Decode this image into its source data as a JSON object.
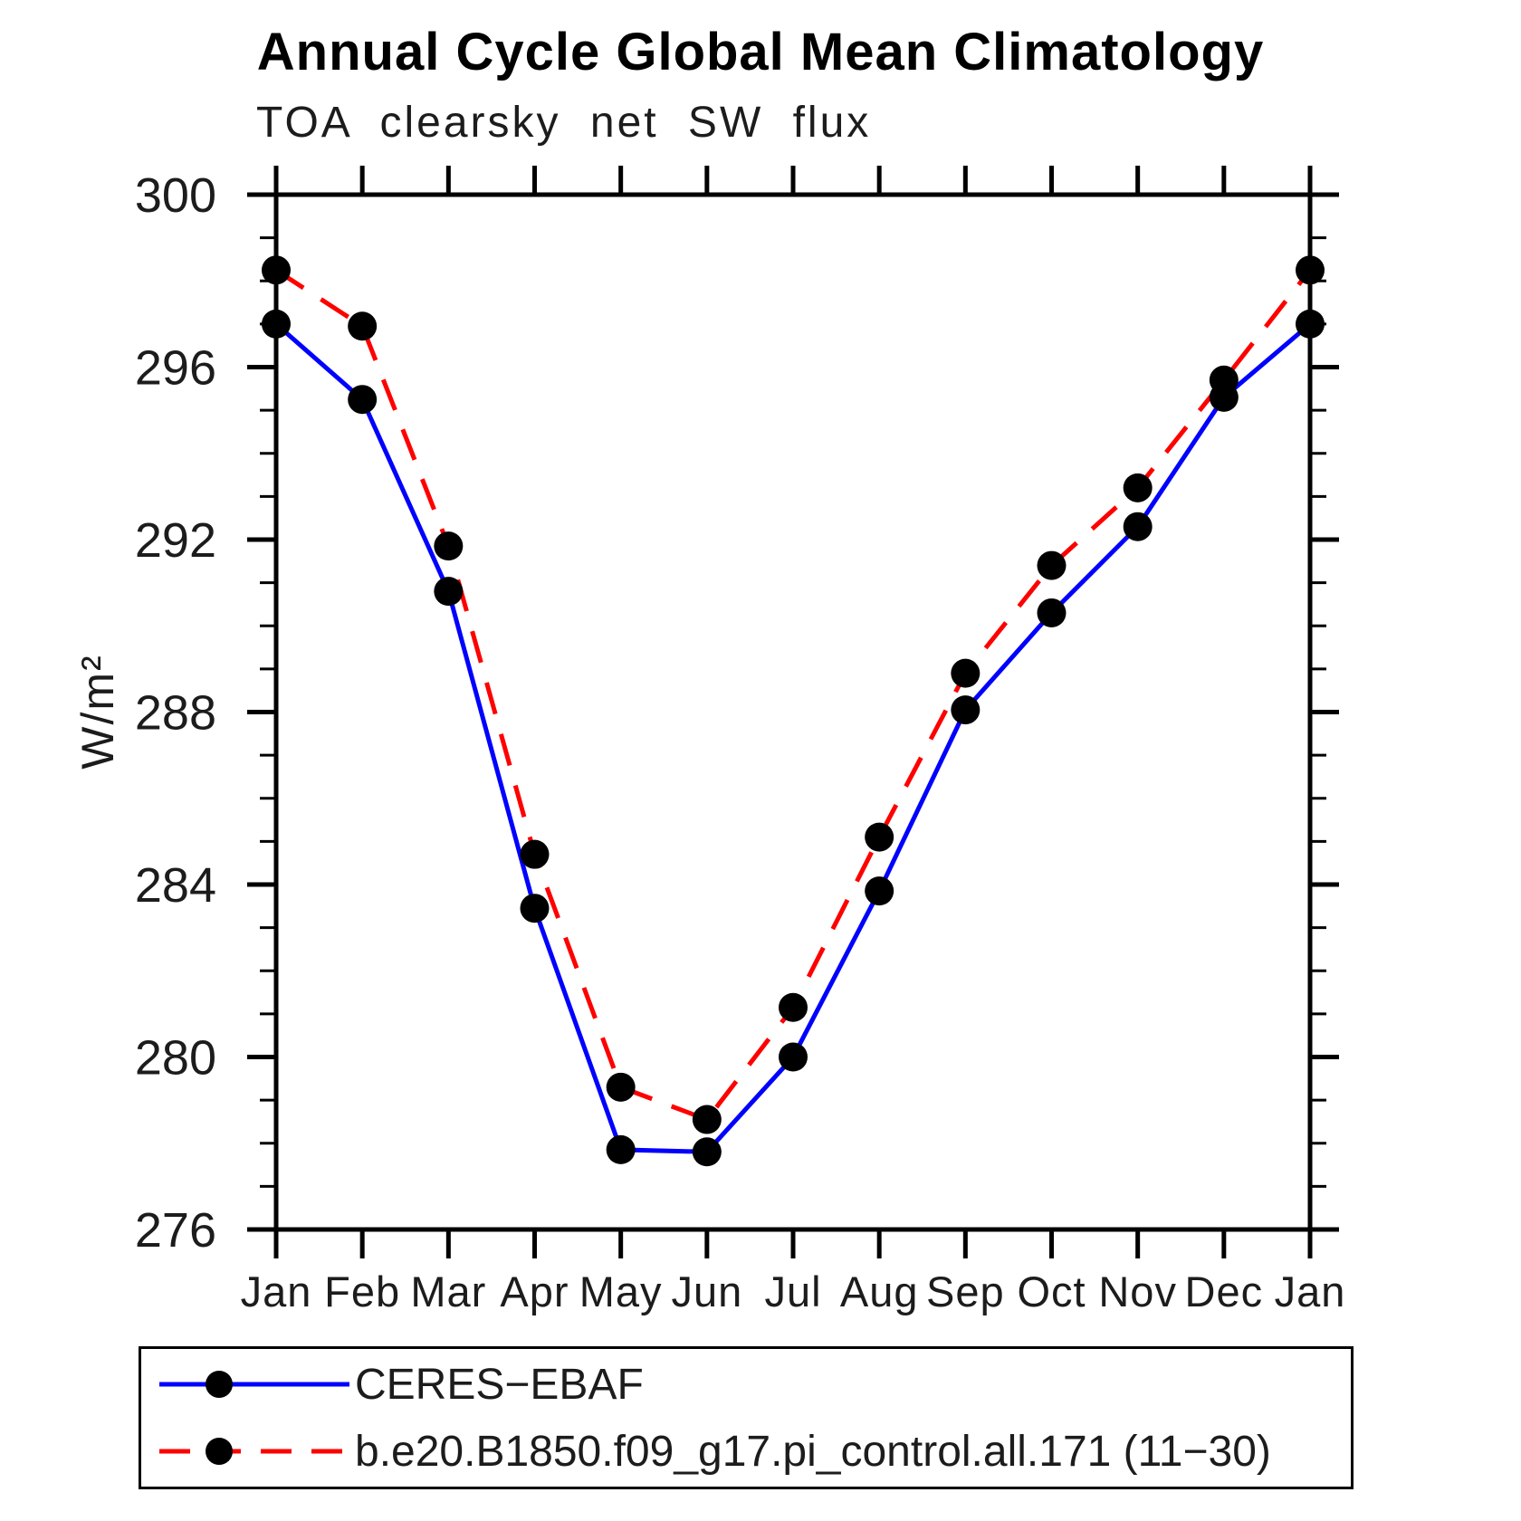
{
  "chart_data": {
    "type": "line",
    "title": "Annual Cycle Global Mean Climatology",
    "subtitle": "TOA clearsky net SW flux",
    "ylabel": "W/m²",
    "xlabel": "",
    "categories": [
      "Jan",
      "Feb",
      "Mar",
      "Apr",
      "May",
      "Jun",
      "Jul",
      "Aug",
      "Sep",
      "Oct",
      "Nov",
      "Dec",
      "Jan"
    ],
    "ylim": [
      276,
      300
    ],
    "ytick_major": 4,
    "ytick_minor": 1,
    "grid": false,
    "legend_position": "bottom",
    "axis_color": "#000000",
    "marker_color": "#000000",
    "series": [
      {
        "name": "CERES−EBAF",
        "color": "#0000ff",
        "style": "solid",
        "values": [
          297.0,
          295.25,
          290.8,
          283.45,
          277.85,
          277.8,
          280.0,
          283.85,
          288.05,
          290.3,
          292.3,
          295.3,
          297.0
        ]
      },
      {
        "name": "b.e20.B1850.f09_g17.pi_control.all.171 (11−30)",
        "color": "#ff0000",
        "style": "dashed",
        "values": [
          298.25,
          296.95,
          291.85,
          284.7,
          279.3,
          278.55,
          281.15,
          285.1,
          288.9,
          291.4,
          293.2,
          295.7,
          298.25
        ]
      }
    ]
  }
}
